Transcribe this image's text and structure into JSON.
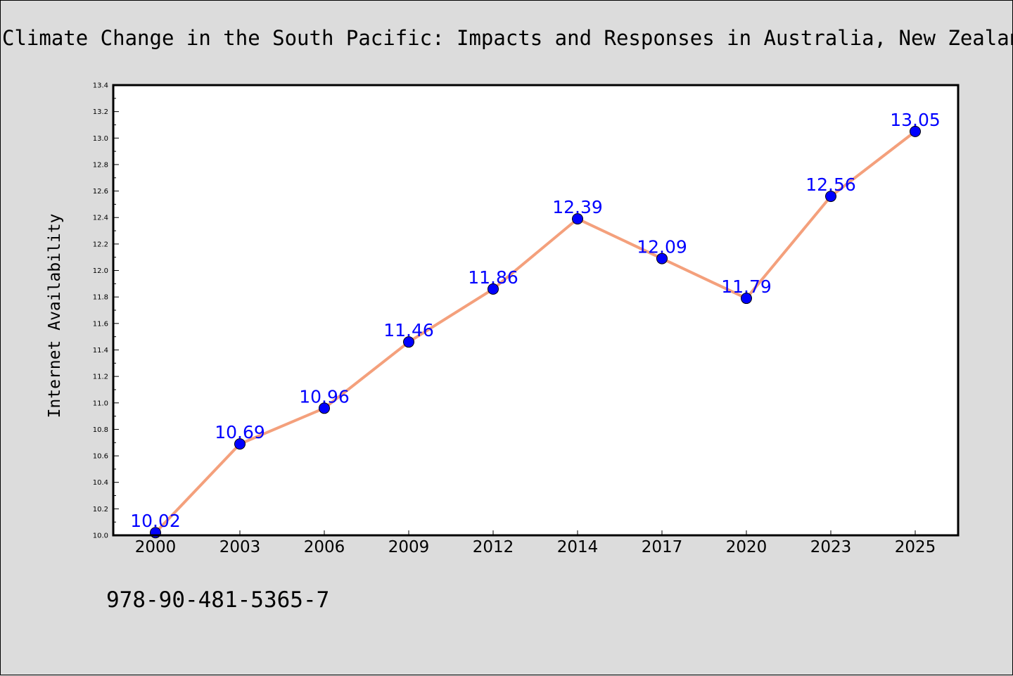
{
  "chart_data": {
    "type": "line",
    "title": "Climate Change in the South Pacific: Impacts and Responses in Australia, New Zealand, and Small Island States",
    "xlabel": "",
    "ylabel": "Internet Availability",
    "categories": [
      "2000",
      "2003",
      "2006",
      "2009",
      "2012",
      "2014",
      "2017",
      "2020",
      "2023",
      "2025"
    ],
    "series": [
      {
        "values": [
          10.02,
          10.69,
          10.96,
          11.46,
          11.86,
          12.39,
          12.09,
          11.79,
          12.56,
          13.05
        ]
      }
    ],
    "data_labels": [
      "10.02",
      "10.69",
      "10.96",
      "11.46",
      "11.86",
      "12.39",
      "12.09",
      "11.79",
      "12.56",
      "13.05"
    ],
    "ylim": [
      10.0,
      13.4
    ],
    "yticks": [
      "10.0",
      "10.2",
      "10.4",
      "10.6",
      "10.8",
      "11.0",
      "11.2",
      "11.4",
      "11.6",
      "11.8",
      "12.0",
      "12.2",
      "12.4",
      "12.6",
      "12.8",
      "13.0",
      "13.2",
      "13.4"
    ],
    "line_color": "#f4a07c",
    "marker_color": "#0000ff",
    "label_color": "#0000ff",
    "grid": false,
    "legend": "none"
  },
  "footer_text": "978-90-481-5365-7"
}
